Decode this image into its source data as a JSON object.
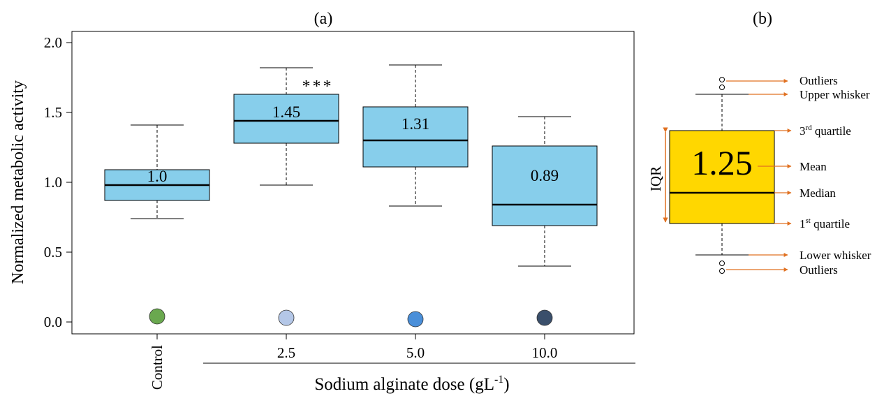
{
  "panel_a": {
    "label": "(a)",
    "chart_data": {
      "type": "box",
      "ylabel": "Normalized metabolic  activity",
      "xlabel": "Sodium alginate dose (gL",
      "xlabel_unit_sup": "-1",
      "xlabel_tail": ")",
      "ylim": [
        0.0,
        2.0
      ],
      "yticks": [
        "0.0",
        "0.5",
        "1.0",
        "1.5",
        "2.0"
      ],
      "categories": [
        "Control",
        "2.5",
        "5.0",
        "10.0"
      ],
      "boxes": [
        {
          "category": "Control",
          "whisker_low": 0.74,
          "q1": 0.87,
          "median": 0.98,
          "q3": 1.09,
          "whisker_high": 1.41,
          "mean_label": "1.0",
          "marker_value": 0.04,
          "marker_color": "#6aa84f",
          "significance": ""
        },
        {
          "category": "2.5",
          "whisker_low": 0.98,
          "q1": 1.28,
          "median": 1.44,
          "q3": 1.63,
          "whisker_high": 1.82,
          "mean_label": "1.45",
          "marker_value": 0.03,
          "marker_color": "#b4c7e7",
          "significance": "***"
        },
        {
          "category": "5.0",
          "whisker_low": 0.83,
          "q1": 1.11,
          "median": 1.3,
          "q3": 1.54,
          "whisker_high": 1.84,
          "mean_label": "1.31",
          "marker_value": 0.02,
          "marker_color": "#4a8fd9",
          "significance": ""
        },
        {
          "category": "10.0",
          "whisker_low": 0.4,
          "q1": 0.69,
          "median": 0.84,
          "q3": 1.26,
          "whisker_high": 1.47,
          "mean_label": "0.89",
          "marker_value": 0.03,
          "marker_color": "#3a4f6b",
          "significance": ""
        }
      ],
      "box_color": "#87ceeb",
      "grid": false
    }
  },
  "panel_b": {
    "label": "(b)",
    "mean_value": "1.25",
    "box_color": "#ffd700",
    "arrow_color": "#e07020",
    "side_label": "IQR",
    "annotations": {
      "outliers_top": "Outliers",
      "upper_whisker": "Upper whisker",
      "q3_prefix": "3",
      "q3_sup": "rd",
      "q3_suffix": " quartile",
      "mean": "Mean",
      "median": "Median",
      "q1_prefix": "1",
      "q1_sup": "st",
      "q1_suffix": " quartile",
      "lower_whisker": "Lower whisker",
      "outliers_bottom": "Outliers"
    }
  }
}
